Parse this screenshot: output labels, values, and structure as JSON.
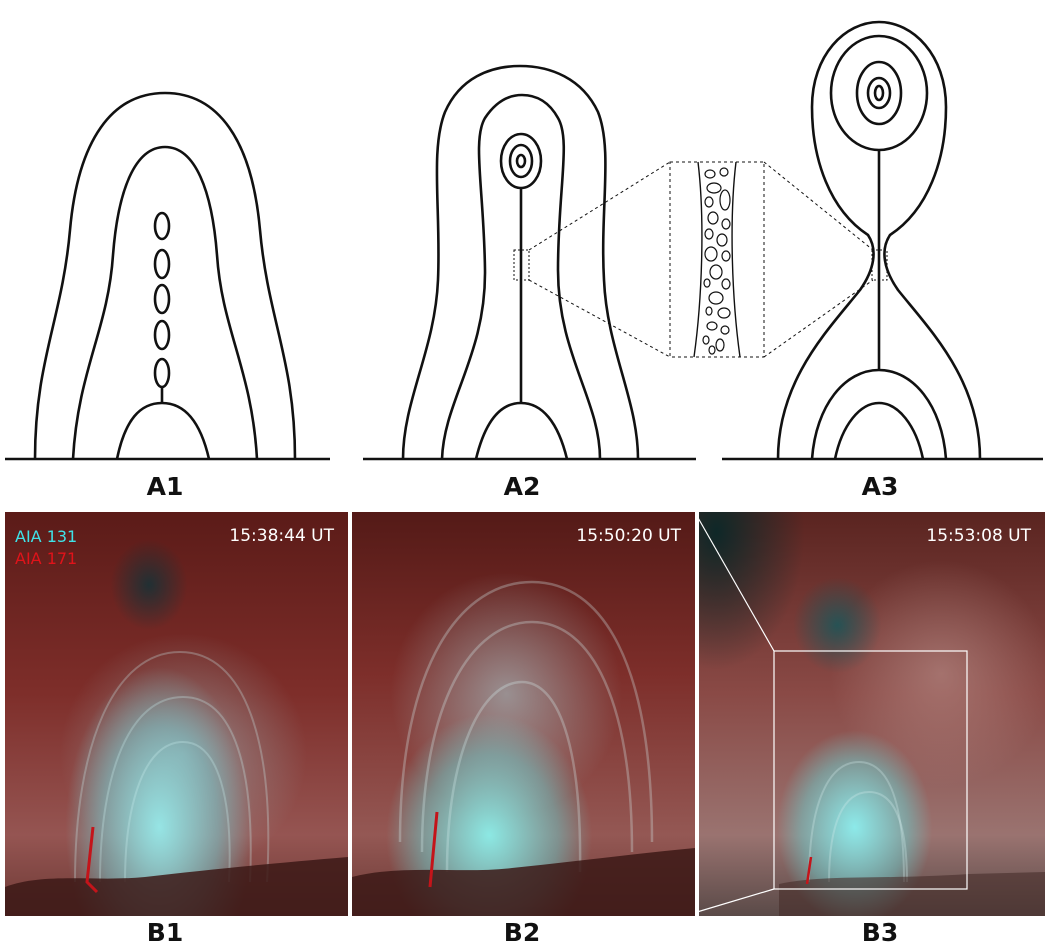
{
  "diagram_panels": [
    {
      "label": "A1"
    },
    {
      "label": "A2"
    },
    {
      "label": "A3"
    }
  ],
  "image_panels": [
    {
      "label": "B1",
      "timestamp": "15:38:44 UT"
    },
    {
      "label": "B2",
      "timestamp": "15:50:20 UT"
    },
    {
      "label": "B3",
      "timestamp": "15:53:08 UT"
    }
  ],
  "legend": {
    "channel_131": "AIA 131",
    "channel_171": "AIA 171"
  },
  "colors": {
    "channel_131": "#3fe3e8",
    "channel_171": "#e0131a",
    "line": "#111111"
  }
}
